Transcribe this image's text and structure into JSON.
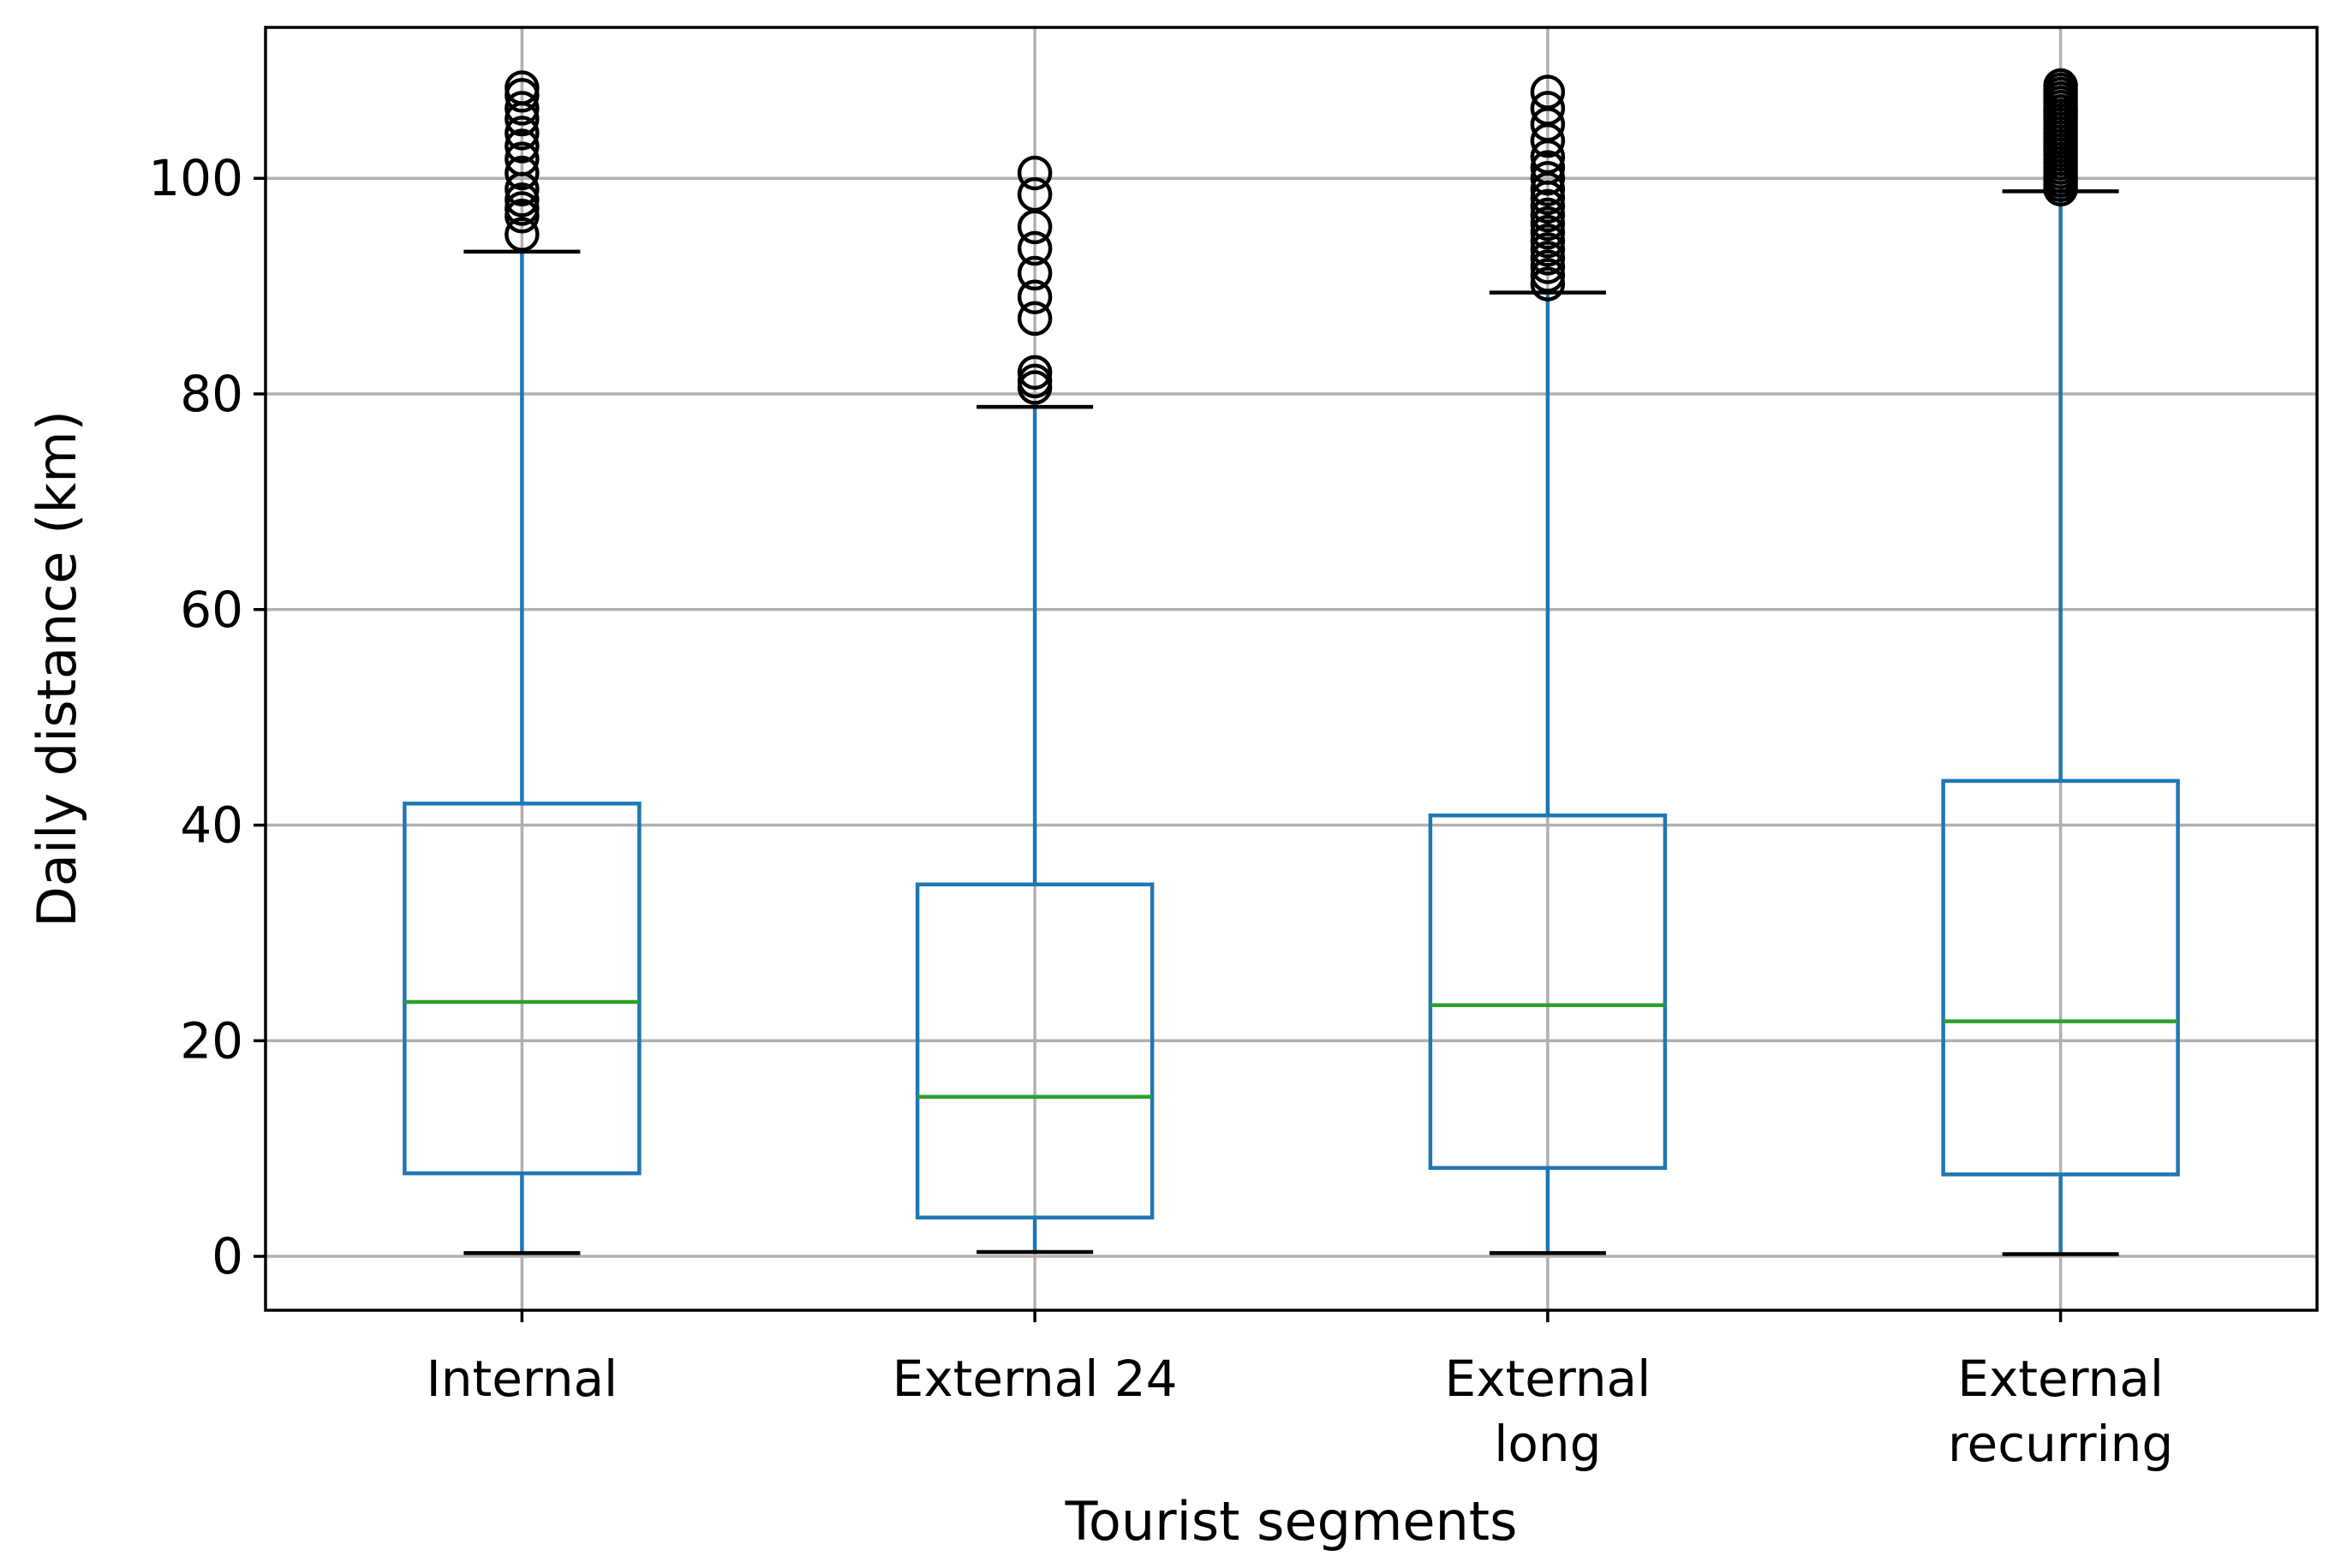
{
  "chart_data": {
    "type": "box",
    "title": "",
    "xlabel": "Tourist segments",
    "ylabel": "Daily distance (km)",
    "ylim": [
      -5,
      114
    ],
    "yticks": [
      0,
      20,
      40,
      60,
      80,
      100
    ],
    "grid": true,
    "colors": {
      "box": "#1f77b4",
      "median": "#2ca02c",
      "whisker_cap": "#000000",
      "grid": "#b0b0b0",
      "frame": "#000000",
      "flier": "#000000"
    },
    "categories": [
      {
        "label_lines": [
          "Internal"
        ]
      },
      {
        "label_lines": [
          "External 24"
        ]
      },
      {
        "label_lines": [
          "External",
          "long"
        ]
      },
      {
        "label_lines": [
          "External",
          "recurring"
        ]
      }
    ],
    "boxes": [
      {
        "whislo": 0.3,
        "q1": 7.7,
        "med": 23.6,
        "q3": 42.0,
        "whishi": 93.2,
        "fliers": [
          94.8,
          96.5,
          97.2,
          98.0,
          99.0,
          100.5,
          101.8,
          103.0,
          104.2,
          105.5,
          106.5,
          107.7,
          108.4
        ]
      },
      {
        "whislo": 0.4,
        "q1": 3.6,
        "med": 14.8,
        "q3": 34.5,
        "whishi": 78.8,
        "fliers": [
          80.6,
          81.2,
          82.0,
          87.0,
          89.0,
          91.2,
          93.5,
          95.5,
          98.5,
          100.5
        ]
      },
      {
        "whislo": 0.3,
        "q1": 8.2,
        "med": 23.3,
        "q3": 40.9,
        "whishi": 89.4,
        "fliers": [
          90.2,
          91.0,
          91.8,
          92.6,
          93.4,
          94.2,
          95.0,
          95.8,
          96.6,
          97.4,
          98.2,
          99.0,
          100.0,
          101.0,
          102.0,
          103.5,
          105.0,
          106.5,
          108.0
        ]
      },
      {
        "whislo": 0.2,
        "q1": 7.6,
        "med": 21.8,
        "q3": 44.1,
        "whishi": 98.8,
        "fliers": [
          99.0,
          99.4,
          99.8,
          100.2,
          100.6,
          101.0,
          101.4,
          101.8,
          102.2,
          102.6,
          103.0,
          103.4,
          103.8,
          104.2,
          104.6,
          105.0,
          105.4,
          105.8,
          106.2,
          106.6,
          107.0,
          107.4,
          107.8,
          108.2,
          108.6
        ]
      }
    ]
  }
}
